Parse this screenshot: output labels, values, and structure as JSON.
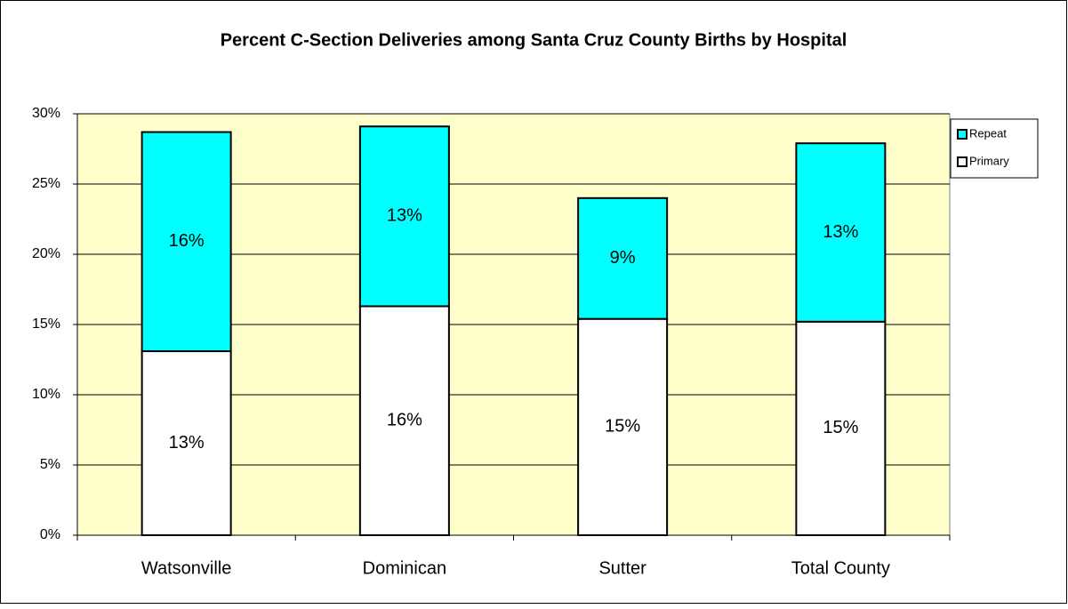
{
  "chart_data": {
    "type": "stacked_bar",
    "title": "Percent C-Section Deliveries among Santa Cruz County Births by Hospital",
    "categories": [
      "Watsonville",
      "Dominican",
      "Sutter",
      "Total County"
    ],
    "series": [
      {
        "name": "Primary",
        "color": "#ffffff",
        "values": [
          13.1,
          16.3,
          15.4,
          15.2
        ],
        "value_labels": [
          "13%",
          "16%",
          "15%",
          "15%"
        ]
      },
      {
        "name": "Repeat",
        "color": "#00ffff",
        "values": [
          15.6,
          12.8,
          8.6,
          12.7
        ],
        "value_labels": [
          "16%",
          "13%",
          "9%",
          "13%"
        ]
      }
    ],
    "ylim": [
      0,
      30
    ],
    "yticks": [
      {
        "value": 0,
        "label": "0%"
      },
      {
        "value": 5,
        "label": "5%"
      },
      {
        "value": 10,
        "label": "10%"
      },
      {
        "value": 15,
        "label": "15%"
      },
      {
        "value": 20,
        "label": "20%"
      },
      {
        "value": 25,
        "label": "25%"
      },
      {
        "value": 30,
        "label": "30%"
      }
    ],
    "grid": true,
    "plot_background": "#ffffcc",
    "legend": "right"
  }
}
